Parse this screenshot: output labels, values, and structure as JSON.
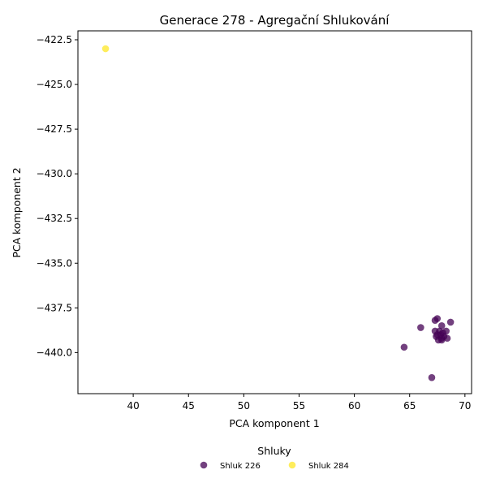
{
  "chart_data": {
    "type": "scatter",
    "title": "Generace 278 - Agregační Shlukování",
    "xlabel": "PCA komponent 1",
    "ylabel": "PCA komponent 2",
    "xlim": [
      35.0,
      70.6
    ],
    "ylim": [
      -442.3,
      -422.0
    ],
    "x_ticks": [
      40,
      45,
      50,
      55,
      60,
      65,
      70
    ],
    "y_ticks": [
      -422.5,
      -425.0,
      -427.5,
      -430.0,
      -432.5,
      -435.0,
      -437.5,
      -440.0
    ],
    "x_tick_labels": [
      "40",
      "45",
      "50",
      "55",
      "60",
      "65",
      "70"
    ],
    "y_tick_labels": [
      "−422.5",
      "−425.0",
      "−427.5",
      "−430.0",
      "−432.5",
      "−435.0",
      "−437.5",
      "−440.0"
    ],
    "grid": false,
    "legend": {
      "title": "Shluky",
      "placement": "bottom-center"
    },
    "series": [
      {
        "name": "Shluk 226",
        "color": "#440154",
        "points": [
          [
            67.5,
            -438.1
          ],
          [
            67.3,
            -438.2
          ],
          [
            68.7,
            -438.3
          ],
          [
            66.0,
            -438.6
          ],
          [
            67.9,
            -438.5
          ],
          [
            67.3,
            -438.8
          ],
          [
            67.7,
            -438.8
          ],
          [
            68.0,
            -438.9
          ],
          [
            68.3,
            -438.8
          ],
          [
            67.5,
            -439.0
          ],
          [
            67.8,
            -439.0
          ],
          [
            68.1,
            -439.1
          ],
          [
            67.4,
            -439.1
          ],
          [
            67.9,
            -439.2
          ],
          [
            68.4,
            -439.2
          ],
          [
            67.6,
            -439.3
          ],
          [
            67.9,
            -439.3
          ],
          [
            64.5,
            -439.7
          ],
          [
            67.0,
            -441.4
          ]
        ]
      },
      {
        "name": "Shluk 284",
        "color": "#fde725",
        "points": [
          [
            37.5,
            -423.0
          ]
        ]
      }
    ]
  }
}
